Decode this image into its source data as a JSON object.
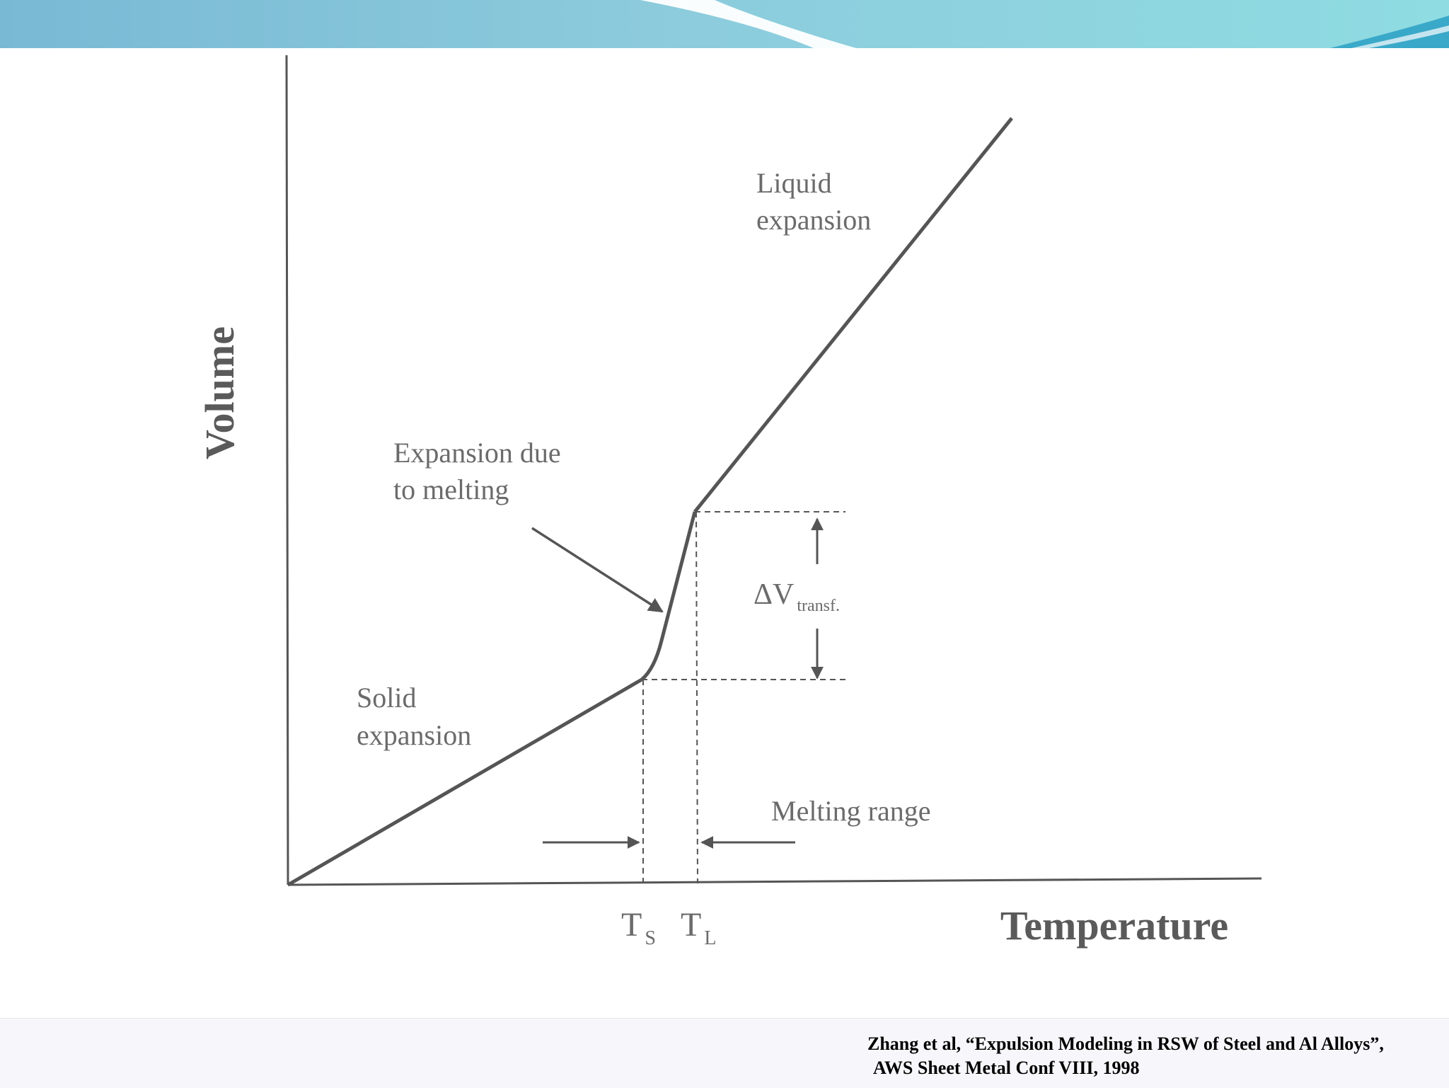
{
  "diagram": {
    "axes": {
      "y_label": "Volume",
      "x_label": "Temperature"
    },
    "ticks": [
      {
        "main": "T",
        "sub": "S"
      },
      {
        "main": "T",
        "sub": "L"
      }
    ],
    "annotations": {
      "liquid": [
        "Liquid",
        "expansion"
      ],
      "melting_expansion": [
        "Expansion due",
        "to melting"
      ],
      "solid": [
        "Solid",
        "expansion"
      ],
      "melting_range": "Melting range",
      "delta_v": {
        "main": "ΔV",
        "sub": "transf."
      }
    },
    "colors": {
      "curve": "#555555",
      "text": "#6b6b6b",
      "axis_title": "#5a5a5a",
      "banner": "#7fc6d8"
    }
  },
  "citation": {
    "line1": "Zhang et al, “Expulsion Modeling in RSW of Steel and Al Alloys”,",
    "line2": "AWS Sheet Metal Conf VIII, 1998"
  }
}
